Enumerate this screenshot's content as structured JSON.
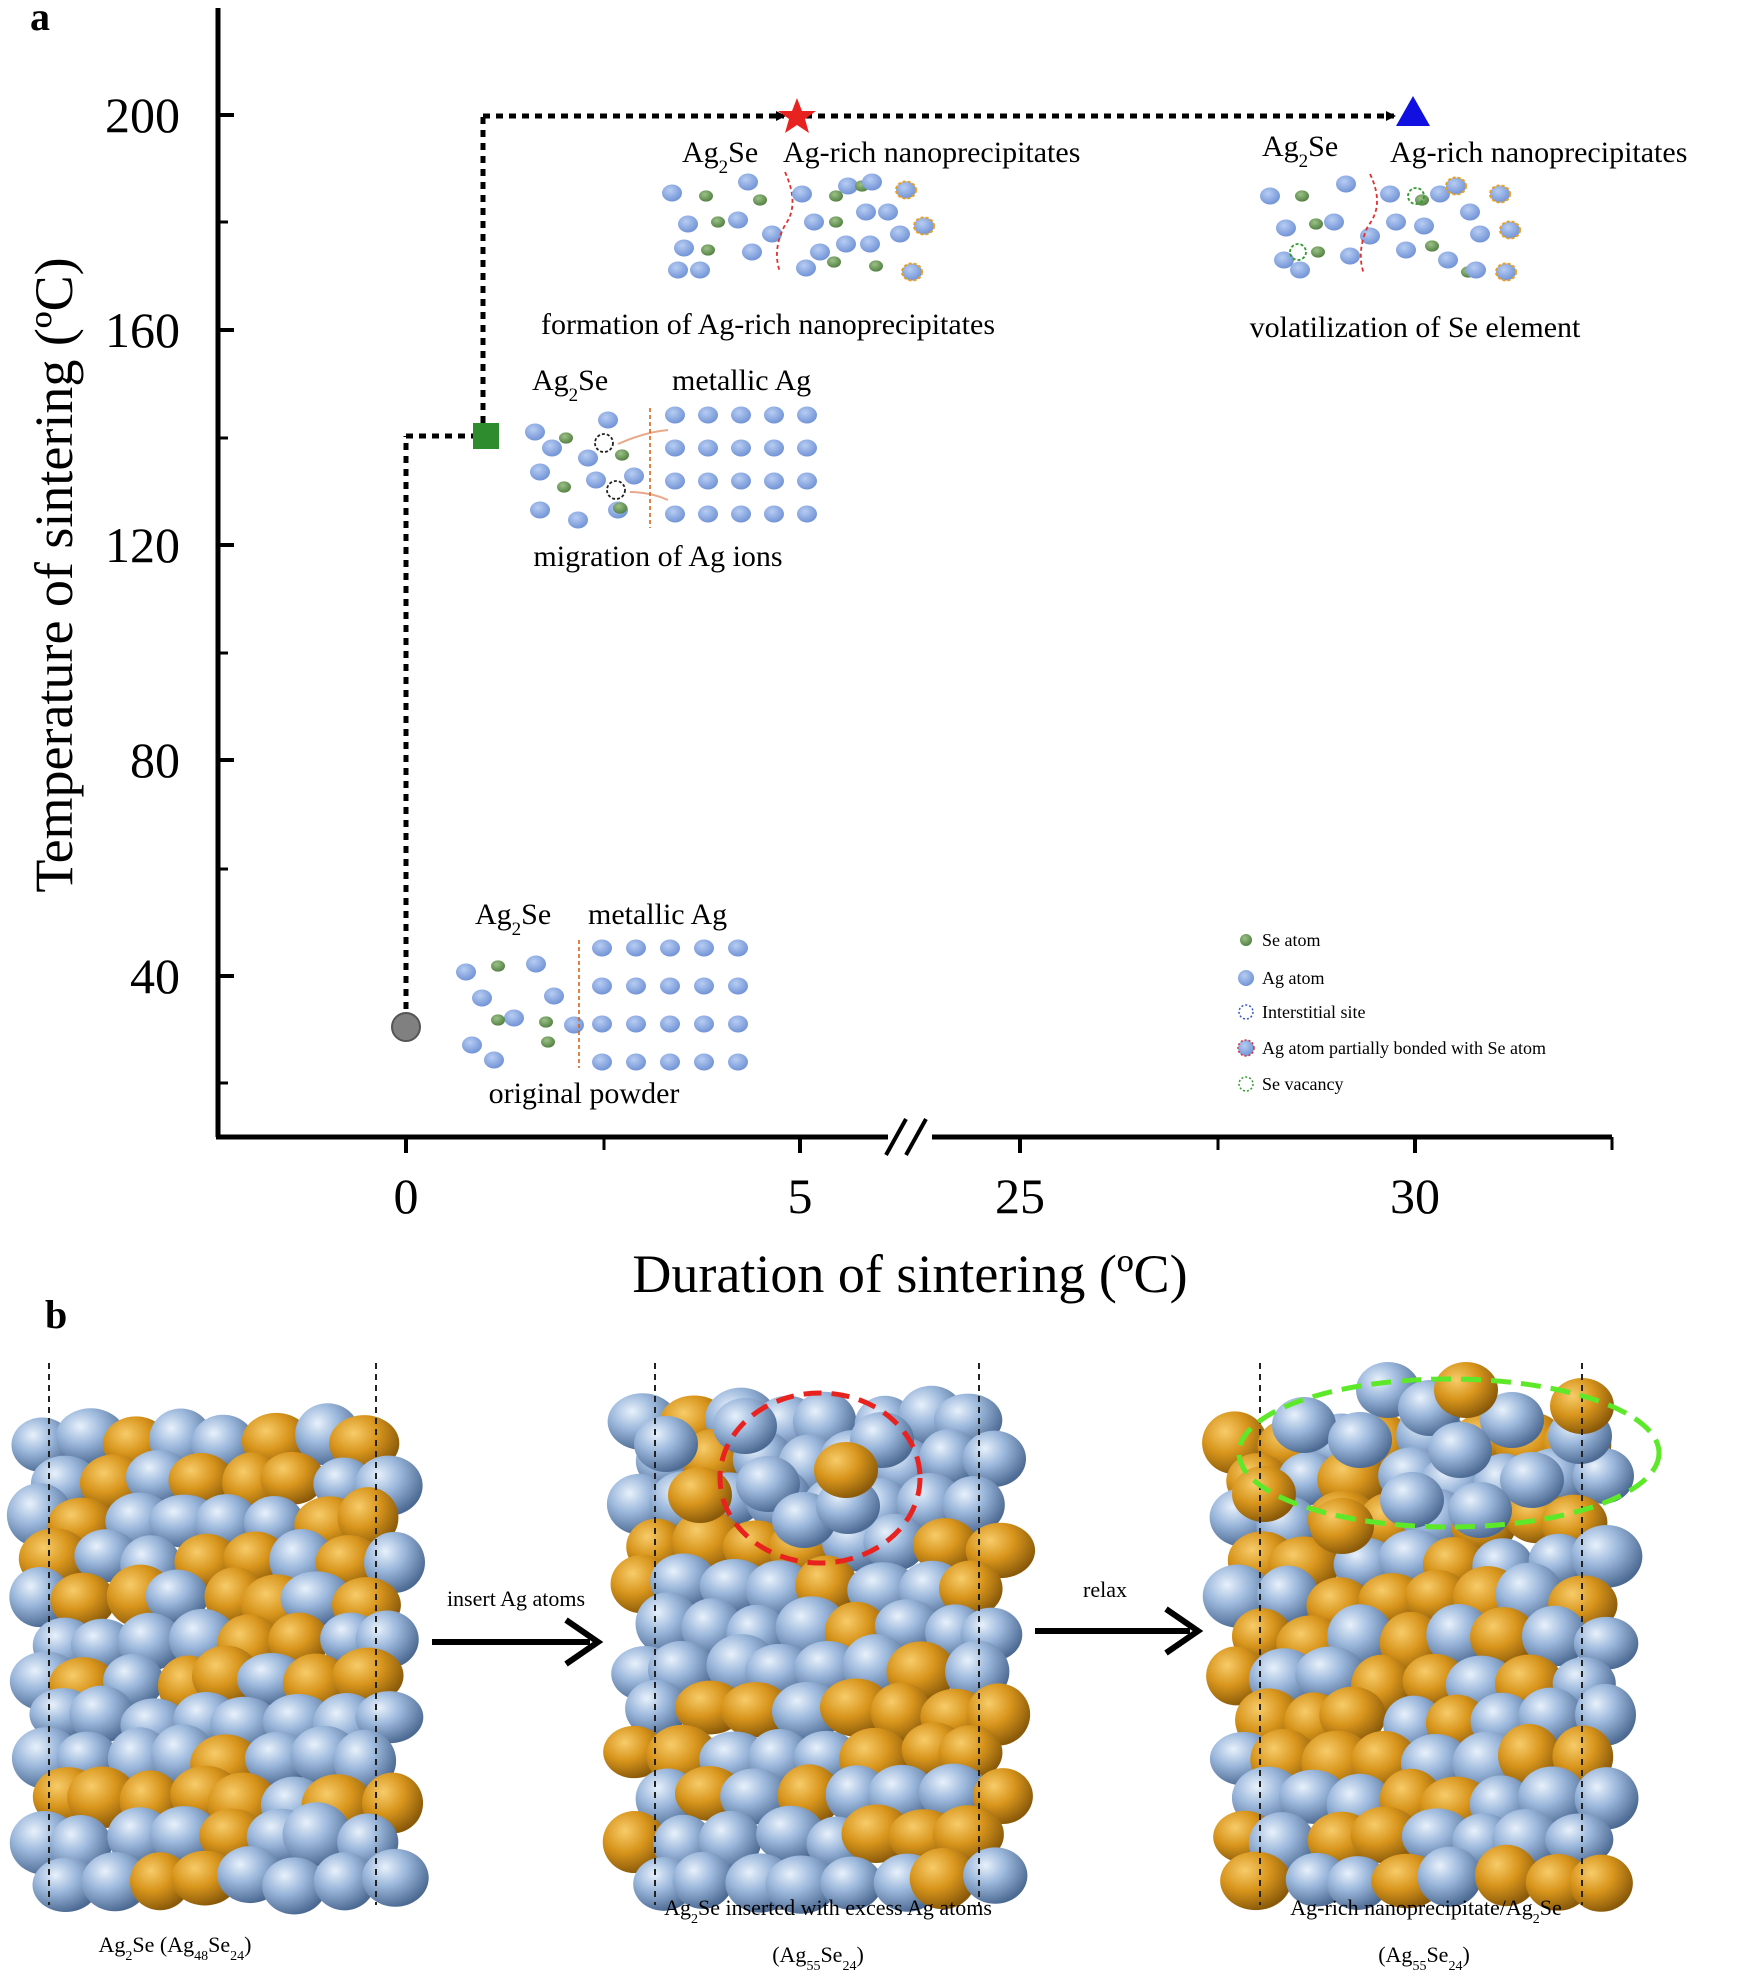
{
  "panel_a": {
    "label": "a",
    "y_axis": {
      "title": "Temperature of sintering (ºC)",
      "ticks": [
        "40",
        "80",
        "120",
        "160",
        "200"
      ]
    },
    "x_axis": {
      "title": "Duration of sintering (ºC)",
      "ticks": [
        "0",
        "5",
        "25",
        "30"
      ]
    },
    "stages": [
      {
        "left_phase": "Ag2Se",
        "right_phase": "metallic Ag",
        "caption": "original powder",
        "caption_color": "#888888",
        "marker": "circle",
        "marker_color": "#808080"
      },
      {
        "left_phase": "Ag2Se",
        "right_phase": "metallic Ag",
        "caption": "migration of Ag ions",
        "caption_color": "#2e6b3a",
        "marker": "square",
        "marker_color": "#2e8b2e"
      },
      {
        "left_phase": "Ag2Se",
        "right_phase": "Ag-rich nanoprecipitates",
        "caption": "formation of Ag-rich nanoprecipitates",
        "caption_color": "#e0201f",
        "marker": "star",
        "marker_color": "#e8231f"
      },
      {
        "left_phase": "Ag2Se",
        "right_phase": "Ag-rich nanoprecipitates",
        "caption": "volatilization of Se element",
        "caption_color": "#1b1bd6",
        "marker": "triangle",
        "marker_color": "#1010e0"
      }
    ],
    "legend": [
      {
        "text": "Se atom",
        "icon": "se-atom"
      },
      {
        "text": "Ag atom",
        "icon": "ag-atom"
      },
      {
        "text": "Interstitial site",
        "icon": "interstitial-site"
      },
      {
        "text": "Ag atom partially bonded with Se atom",
        "icon": "bonded-ag-atom"
      },
      {
        "text": "Se vacancy",
        "icon": "se-vacancy"
      }
    ]
  },
  "panel_b": {
    "label": "b",
    "structures": [
      {
        "caption_main": "Ag2Se (Ag48Se24)",
        "caption_sub": ""
      },
      {
        "caption_main": "Ag2Se inserted with excess Ag atoms",
        "caption_sub": "(Ag55Se24)"
      },
      {
        "caption_main": "Ag-rich nanoprecipitate/Ag2Se",
        "caption_sub": "(Ag55Se24)"
      }
    ],
    "arrows": [
      "insert Ag atoms",
      "relax"
    ]
  },
  "colors": {
    "ag": "#8aaee0",
    "se_small": "#6f9a5e",
    "se_ball": "#d89419",
    "dotted_path": "#000000"
  }
}
